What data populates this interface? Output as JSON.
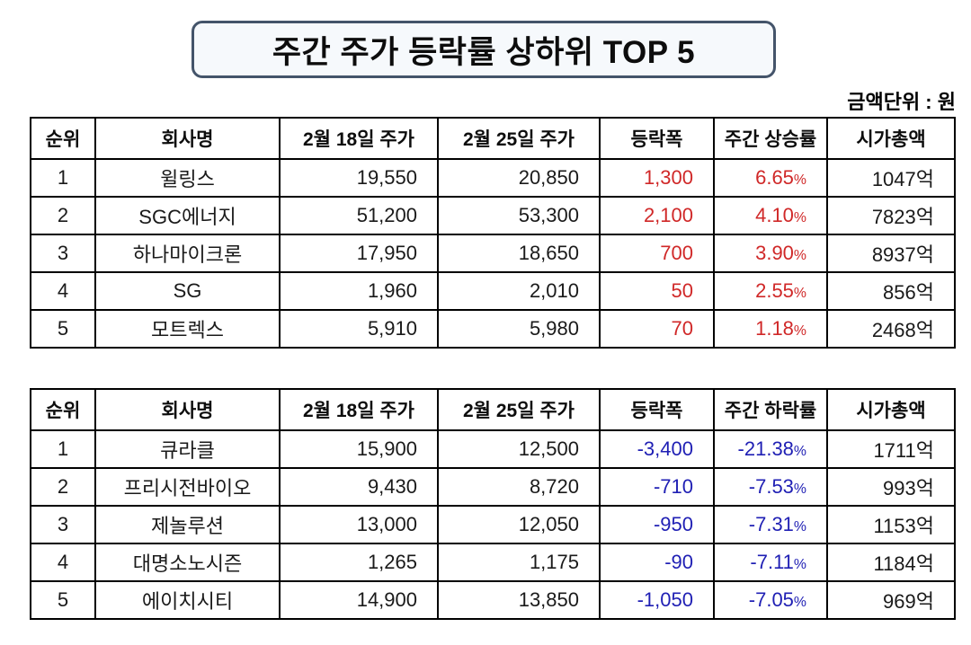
{
  "title": "주간 주가 등락률 상하위 TOP 5",
  "unit_note": "금액단위 : 원",
  "colors": {
    "title_border": "#44546a",
    "gain_text": "#d02828",
    "loss_text": "#1f1fb4",
    "table_border": "#000000"
  },
  "tables": [
    {
      "name": "weekly-top-gainers",
      "trend": "up",
      "headers": [
        "순위",
        "회사명",
        "2월 18일 주가",
        "2월 25일 주가",
        "등락폭",
        "주간 상승률",
        "시가총액"
      ],
      "rows": [
        {
          "rank": "1",
          "company": "윌링스",
          "price_0218": "19,550",
          "price_0225": "20,850",
          "change": "1,300",
          "rate": "6.65%",
          "market_cap": "1047억"
        },
        {
          "rank": "2",
          "company": "SGC에너지",
          "price_0218": "51,200",
          "price_0225": "53,300",
          "change": "2,100",
          "rate": "4.10%",
          "market_cap": "7823억"
        },
        {
          "rank": "3",
          "company": "하나마이크론",
          "price_0218": "17,950",
          "price_0225": "18,650",
          "change": "700",
          "rate": "3.90%",
          "market_cap": "8937억"
        },
        {
          "rank": "4",
          "company": "SG",
          "price_0218": "1,960",
          "price_0225": "2,010",
          "change": "50",
          "rate": "2.55%",
          "market_cap": "856억"
        },
        {
          "rank": "5",
          "company": "모트렉스",
          "price_0218": "5,910",
          "price_0225": "5,980",
          "change": "70",
          "rate": "1.18%",
          "market_cap": "2468억"
        }
      ]
    },
    {
      "name": "weekly-top-losers",
      "trend": "down",
      "headers": [
        "순위",
        "회사명",
        "2월 18일 주가",
        "2월 25일 주가",
        "등락폭",
        "주간 하락률",
        "시가총액"
      ],
      "rows": [
        {
          "rank": "1",
          "company": "큐라클",
          "price_0218": "15,900",
          "price_0225": "12,500",
          "change": "-3,400",
          "rate": "-21.38%",
          "market_cap": "1711억"
        },
        {
          "rank": "2",
          "company": "프리시전바이오",
          "price_0218": "9,430",
          "price_0225": "8,720",
          "change": "-710",
          "rate": "-7.53%",
          "market_cap": "993억"
        },
        {
          "rank": "3",
          "company": "제놀루션",
          "price_0218": "13,000",
          "price_0225": "12,050",
          "change": "-950",
          "rate": "-7.31%",
          "market_cap": "1153억"
        },
        {
          "rank": "4",
          "company": "대명소노시즌",
          "price_0218": "1,265",
          "price_0225": "1,175",
          "change": "-90",
          "rate": "-7.11%",
          "market_cap": "1184억"
        },
        {
          "rank": "5",
          "company": "에이치시티",
          "price_0218": "14,900",
          "price_0225": "13,850",
          "change": "-1,050",
          "rate": "-7.05%",
          "market_cap": "969억"
        }
      ]
    }
  ]
}
